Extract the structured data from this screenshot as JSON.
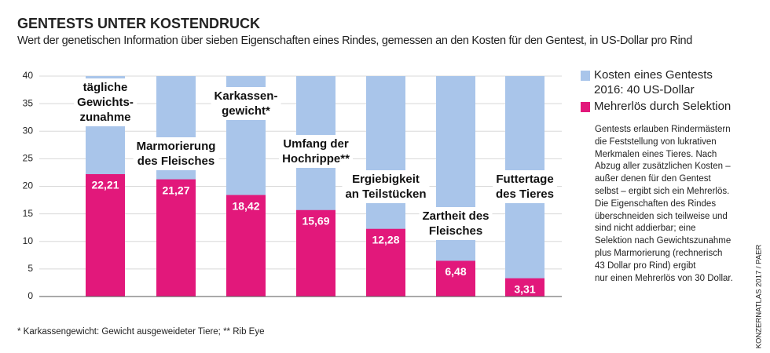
{
  "chart_data": {
    "type": "bar",
    "title": "GENTESTS UNTER KOSTENDRUCK",
    "subtitle": "Wert der genetischen Information über sieben Eigenschaften eines Rindes, gemessen an den Kosten für den Gentest, in US-Dollar pro Rind",
    "categories": [
      "tägliche\nGewichts-\nzunahme",
      "Marmorierung\ndes Fleisches",
      "Karkassen-\ngewicht*",
      "Umfang der\nHochrippe**",
      "Ergiebigkeit\nan Teilstücken",
      "Zartheit des\nFleisches",
      "Futtertage\ndes Tieres"
    ],
    "series": [
      {
        "name": "Kosten eines Gentests\n2016: 40 US-Dollar",
        "color": "#a9c5ea",
        "values": [
          40,
          40,
          40,
          40,
          40,
          40,
          40
        ]
      },
      {
        "name": "Mehrerlös durch Selektion",
        "color": "#e2187b",
        "values": [
          22.21,
          21.27,
          18.42,
          15.69,
          12.28,
          6.48,
          3.31
        ],
        "value_labels": [
          "22,21",
          "21,27",
          "18,42",
          "15,69",
          "12,28",
          "6,48",
          "3,31"
        ]
      }
    ],
    "ylim": [
      0,
      40
    ],
    "yticks": [
      0,
      5,
      10,
      15,
      20,
      25,
      30,
      35,
      40
    ],
    "grid": true,
    "note": "Gentests erlauben Rindermästern\ndie Feststellung von lukrativen\nMerkmalen eines Tieres. Nach\nAbzug aller zusätzlichen Kosten –\naußer denen für den Gentest\nselbst – ergibt sich ein Mehrerlös.\nDie Eigenschaften des Rindes\nüberschneiden sich teilweise und\nsind nicht addierbar; eine\nSelektion nach Gewichtszunahme\nplus Marmorierung (rechnerisch\n43 Dollar pro Rind) ergibt\nnur einen Mehrerlös von 30 Dollar.",
    "footnote": "* Karkassengewicht: Gewicht ausgeweideter Tiere; ** Rib Eye",
    "source": "KONZERNATLAS 2017 / PAER"
  }
}
